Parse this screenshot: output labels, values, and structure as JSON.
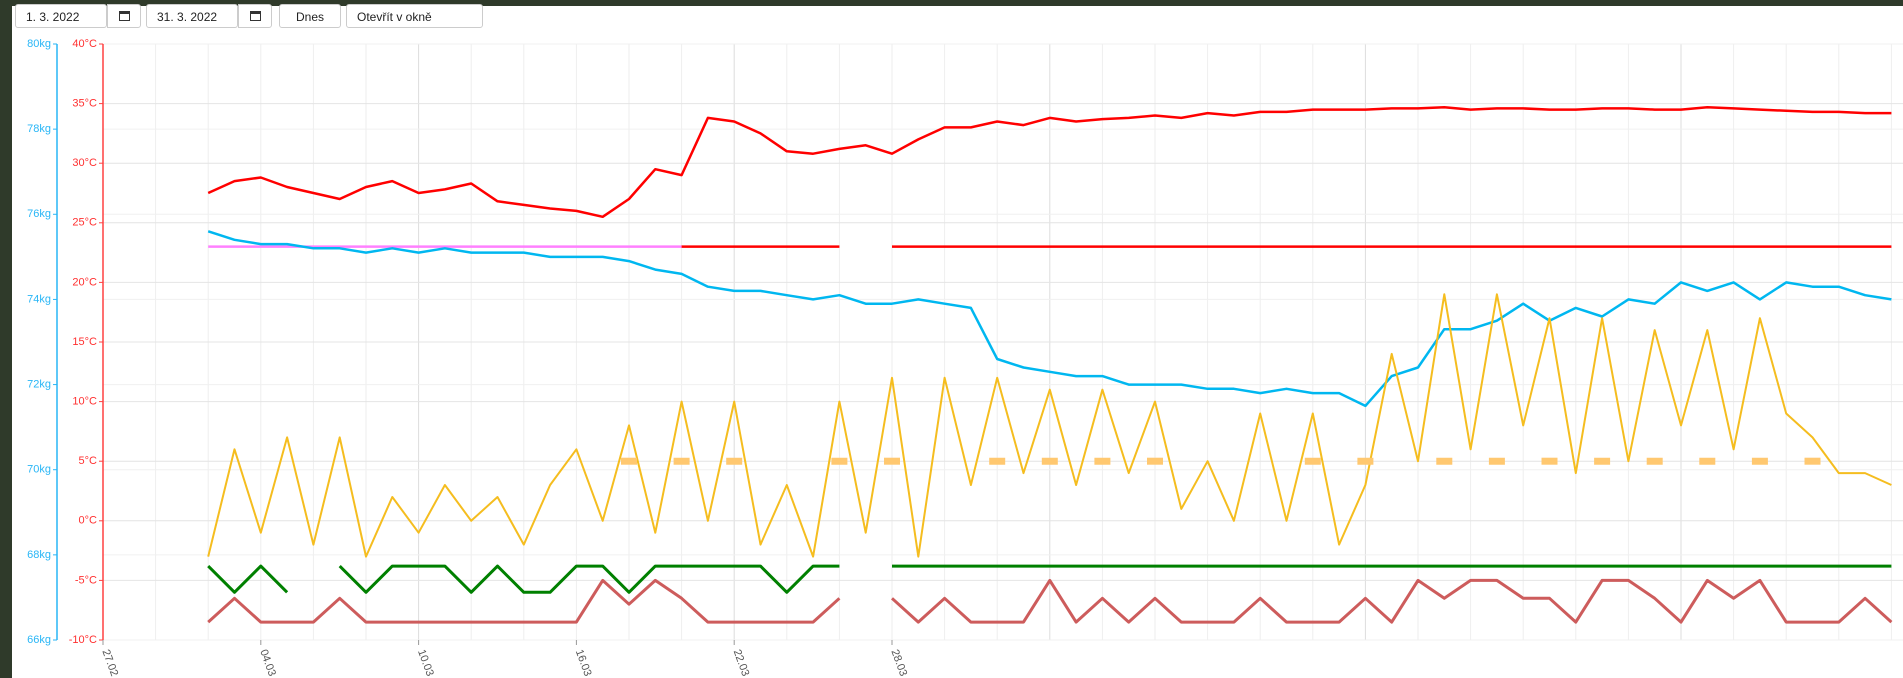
{
  "toolbar": {
    "date_from": "1. 3. 2022",
    "date_to": "31. 3. 2022",
    "today": "Dnes",
    "open_window": "Otevřít v okně"
  },
  "chart_data": {
    "type": "line",
    "categories": [
      "27.02 03:00",
      null,
      null,
      null,
      null,
      null,
      "04.03 22:00",
      null,
      null,
      null,
      null,
      null,
      "10.03 17:00",
      null,
      null,
      null,
      null,
      null,
      "16.03 12:00",
      null,
      null,
      null,
      null,
      null,
      "22.03 07:00",
      null,
      null,
      null,
      null,
      null,
      "28.03 03:00",
      null,
      null,
      null,
      null,
      null,
      null,
      null,
      null,
      null,
      null,
      null,
      null,
      null,
      null,
      null,
      null,
      null,
      null,
      null,
      null,
      null,
      null,
      null,
      null,
      null,
      null,
      null,
      null,
      null,
      null,
      null,
      null,
      null,
      null,
      null,
      null,
      null,
      null
    ],
    "tick_every": 12,
    "ylim": [
      -10,
      40
    ],
    "yticks": [
      {
        "value": -10,
        "label": "-10°C"
      },
      {
        "value": -5,
        "label": "-5°C"
      },
      {
        "value": 0,
        "label": "0°C"
      },
      {
        "value": 5,
        "label": "5°C"
      },
      {
        "value": 10,
        "label": "10°C"
      },
      {
        "value": 15,
        "label": "15°C"
      },
      {
        "value": 20,
        "label": "20°C"
      },
      {
        "value": 25,
        "label": "25°C"
      },
      {
        "value": 30,
        "label": "30°C"
      },
      {
        "value": 35,
        "label": "35°C"
      },
      {
        "value": 40,
        "label": "40°C"
      }
    ],
    "y2lim": [
      66,
      80
    ],
    "y2ticks": [
      {
        "value": 66,
        "label": "66kg"
      },
      {
        "value": 68,
        "label": "68kg"
      },
      {
        "value": 70,
        "label": "70kg"
      },
      {
        "value": 72,
        "label": "72kg"
      },
      {
        "value": 74,
        "label": "74kg"
      },
      {
        "value": 76,
        "label": "76kg"
      },
      {
        "value": 78,
        "label": "78kg"
      },
      {
        "value": 80,
        "label": "80kg"
      }
    ],
    "grid": true,
    "series": [
      {
        "color": "#ff0000",
        "width": 2.5,
        "values": [
          null,
          null,
          null,
          null,
          27.5,
          28.5,
          28.8,
          28,
          27.5,
          27,
          28,
          28.5,
          27.5,
          27.8,
          28.3,
          26.8,
          26.5,
          26.2,
          26,
          25.5,
          27,
          29.5,
          29,
          33.8,
          33.5,
          32.5,
          31,
          30.8,
          31.2,
          31.5,
          30.8,
          32,
          33,
          33,
          33.5,
          33.2,
          33.8,
          33.5,
          33.7,
          33.8,
          34,
          33.8,
          34.2,
          34,
          34.3,
          34.3,
          34.5,
          34.5,
          34.5,
          34.6,
          34.6,
          34.7,
          34.5,
          34.6,
          34.6,
          34.5,
          34.5,
          34.6,
          34.6,
          34.5,
          34.5,
          34.7,
          34.6,
          34.5,
          34.4,
          34.3,
          34.3,
          34.2,
          34.2
        ]
      },
      {
        "color": "#ff80ff",
        "width": 2.5,
        "values": [
          null,
          null,
          null,
          null,
          23,
          23,
          23,
          23,
          23,
          23,
          23,
          23,
          23,
          23,
          23,
          23,
          23,
          23,
          23,
          23,
          23,
          23,
          23,
          null,
          null,
          null,
          null,
          null,
          null,
          null,
          null,
          null,
          null,
          null,
          null,
          null,
          null,
          null,
          null,
          null,
          null,
          null,
          null,
          null,
          null,
          null,
          null,
          null,
          null,
          null,
          null,
          null,
          null,
          null,
          null,
          null,
          null,
          null,
          null,
          null,
          null,
          null,
          null,
          null,
          null,
          null,
          null,
          null,
          null
        ]
      },
      {
        "color": "#ff0000",
        "width": 2.5,
        "values": [
          null,
          null,
          null,
          null,
          null,
          null,
          null,
          null,
          null,
          null,
          null,
          null,
          null,
          null,
          null,
          null,
          null,
          null,
          null,
          null,
          null,
          null,
          23,
          23,
          23,
          23,
          23,
          23,
          23,
          null,
          23,
          23,
          23,
          23,
          23,
          23,
          23,
          23,
          23,
          23,
          23,
          23,
          23,
          23,
          23,
          23,
          23,
          23,
          23,
          23,
          23,
          23,
          23,
          23,
          23,
          23,
          23,
          23,
          23,
          23,
          23,
          23,
          23,
          23,
          23,
          23,
          23,
          23,
          23
        ]
      },
      {
        "color": "#00b7f0",
        "width": 2.5,
        "axis": "y2",
        "values": [
          null,
          null,
          null,
          null,
          75.6,
          75.4,
          75.3,
          75.3,
          75.2,
          75.2,
          75.1,
          75.2,
          75.1,
          75.2,
          75.1,
          75.1,
          75.1,
          75.0,
          75.0,
          75.0,
          74.9,
          74.7,
          74.6,
          74.3,
          74.2,
          74.2,
          74.1,
          74.0,
          74.1,
          73.9,
          73.9,
          74.0,
          73.9,
          73.8,
          72.6,
          72.4,
          72.3,
          72.2,
          72.2,
          72.0,
          72.0,
          72.0,
          71.9,
          71.9,
          71.8,
          71.9,
          71.8,
          71.8,
          71.5,
          72.2,
          72.4,
          73.3,
          73.3,
          73.5,
          73.9,
          73.5,
          73.8,
          73.6,
          74.0,
          73.9,
          74.4,
          74.2,
          74.4,
          74.0,
          74.4,
          74.3,
          74.3,
          74.1,
          74.0
        ]
      },
      {
        "color": "#f5bd1f",
        "width": 2,
        "values": [
          null,
          null,
          null,
          null,
          -3,
          6,
          -1,
          7,
          -2,
          7,
          -3,
          2,
          -1,
          3,
          0,
          2,
          -2,
          3,
          6,
          0,
          8,
          -1,
          10,
          0,
          10,
          -2,
          3,
          -3,
          10,
          -1,
          12,
          -3,
          12,
          3,
          12,
          4,
          11,
          3,
          11,
          4,
          10,
          1,
          5,
          0,
          9,
          0,
          9,
          -2,
          3,
          14,
          5,
          19,
          6,
          19,
          8,
          17,
          4,
          17,
          5,
          16,
          8,
          16,
          6,
          17,
          9,
          7,
          4,
          4,
          3
        ]
      },
      {
        "color": "#ffc870",
        "width": 7,
        "mark": "segment",
        "values": [
          null,
          null,
          null,
          null,
          null,
          null,
          null,
          null,
          null,
          null,
          null,
          null,
          null,
          null,
          null,
          null,
          null,
          null,
          null,
          null,
          5,
          null,
          5,
          null,
          5,
          null,
          null,
          null,
          5,
          null,
          5,
          null,
          null,
          null,
          5,
          null,
          5,
          null,
          5,
          null,
          5,
          null,
          null,
          null,
          null,
          null,
          5,
          null,
          5,
          null,
          null,
          5,
          null,
          5,
          null,
          5,
          null,
          5,
          null,
          5,
          null,
          5,
          null,
          5,
          null,
          5,
          null,
          null,
          null
        ]
      },
      {
        "color": "#008000",
        "width": 3,
        "values": [
          null,
          null,
          null,
          null,
          -3.8,
          -6,
          -3.8,
          -6,
          null,
          -3.8,
          -6,
          -3.8,
          -3.8,
          -3.8,
          -6,
          -3.8,
          -6,
          -6,
          -3.8,
          -3.8,
          -6,
          -3.8,
          -3.8,
          -3.8,
          -3.8,
          -3.8,
          -6,
          -3.8,
          -3.8,
          null,
          -3.8,
          -3.8,
          -3.8,
          -3.8,
          -3.8,
          -3.8,
          -3.8,
          -3.8,
          -3.8,
          -3.8,
          -3.8,
          -3.8,
          -3.8,
          -3.8,
          -3.8,
          -3.8,
          -3.8,
          -3.8,
          -3.8,
          -3.8,
          -3.8,
          -3.8,
          -3.8,
          -3.8,
          -3.8,
          -3.8,
          -3.8,
          -3.8,
          -3.8,
          -3.8,
          -3.8,
          -3.8,
          -3.8,
          -3.8,
          -3.8,
          -3.8,
          -3.8,
          -3.8,
          -3.8
        ]
      },
      {
        "color": "#cd5c5c",
        "width": 3,
        "values": [
          null,
          null,
          null,
          null,
          -8.5,
          -6.5,
          -8.5,
          -8.5,
          -8.5,
          -6.5,
          -8.5,
          -8.5,
          -8.5,
          -8.5,
          -8.5,
          -8.5,
          -8.5,
          -8.5,
          -8.5,
          -5,
          -7,
          -5,
          -6.5,
          -8.5,
          -8.5,
          -8.5,
          -8.5,
          -8.5,
          -6.5,
          null,
          -6.5,
          -8.5,
          -6.5,
          -8.5,
          -8.5,
          -8.5,
          -5,
          -8.5,
          -6.5,
          -8.5,
          -6.5,
          -8.5,
          -8.5,
          -8.5,
          -6.5,
          -8.5,
          -8.5,
          -8.5,
          -6.5,
          -8.5,
          -5,
          -6.5,
          -5,
          -5,
          -6.5,
          -6.5,
          -8.5,
          -5,
          -5,
          -6.5,
          -8.5,
          -5,
          -6.5,
          -5,
          -8.5,
          -8.5,
          -8.5,
          -6.5,
          -8.5
        ]
      }
    ]
  }
}
